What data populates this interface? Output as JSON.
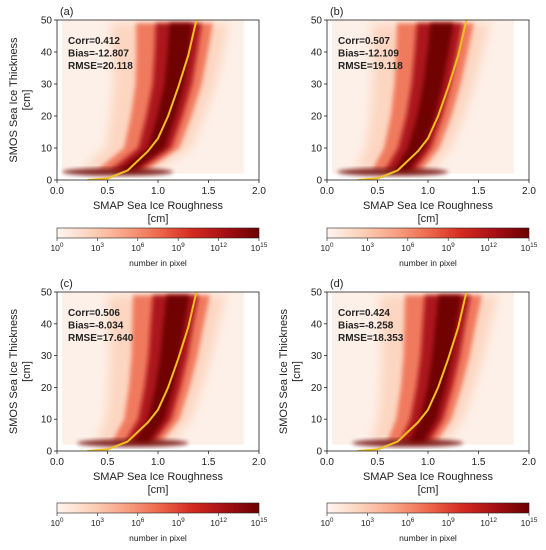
{
  "chart_data": [
    {
      "type": "heatmap",
      "panel_label": "(a)",
      "xlabel": "SMAP Sea Ice Roughness",
      "xlabel_unit": "[cm]",
      "ylabel": "SMOS Sea Ice Thickness",
      "ylabel_unit": "[cm]",
      "xlim": [
        0,
        2.0
      ],
      "ylim": [
        0,
        50
      ],
      "x_ticks": [
        "0.0",
        "0.5",
        "1.0",
        "1.5",
        "2.0"
      ],
      "y_ticks": [
        "0",
        "10",
        "20",
        "30",
        "40",
        "50"
      ],
      "stats": [
        "Corr=0.412",
        "Bias=-12.807",
        "RMSE=20.118"
      ],
      "colorbar_label": "number in pixel",
      "colorbar_ticks": [
        "10",
        "10",
        "10",
        "10",
        "10",
        "10"
      ],
      "colorbar_exponents": [
        "0",
        "3",
        "6",
        "9",
        "12",
        "15"
      ],
      "density_core_x": [
        0.7,
        1.0,
        1.1,
        1.18,
        1.22,
        1.25
      ],
      "fit_curve": [
        [
          0.3,
          0
        ],
        [
          0.5,
          0.5
        ],
        [
          0.7,
          3
        ],
        [
          0.9,
          9
        ],
        [
          1.0,
          13
        ],
        [
          1.1,
          20
        ],
        [
          1.2,
          29
        ],
        [
          1.3,
          39
        ],
        [
          1.38,
          50
        ]
      ]
    },
    {
      "type": "heatmap",
      "panel_label": "(b)",
      "xlabel": "SMAP Sea Ice Roughness",
      "xlabel_unit": "[cm]",
      "ylabel": "",
      "ylabel_unit": "",
      "xlim": [
        0,
        2.0
      ],
      "ylim": [
        0,
        50
      ],
      "x_ticks": [
        "0.0",
        "0.5",
        "1.0",
        "1.5",
        "2.0"
      ],
      "y_ticks": [
        "0",
        "10",
        "20",
        "30",
        "40",
        "50"
      ],
      "stats": [
        "Corr=0.507",
        "Bias=-12.109",
        "RMSE=19.118"
      ],
      "colorbar_label": "number in pixel",
      "colorbar_ticks": [
        "10",
        "10",
        "10",
        "10",
        "10",
        "10"
      ],
      "colorbar_exponents": [
        "0",
        "3",
        "6",
        "9",
        "12",
        "15"
      ],
      "density_core_x": [
        0.75,
        0.9,
        1.0,
        1.07,
        1.12,
        1.16
      ],
      "fit_curve": [
        [
          0.3,
          0
        ],
        [
          0.5,
          0.5
        ],
        [
          0.7,
          3
        ],
        [
          0.9,
          9
        ],
        [
          1.0,
          13
        ],
        [
          1.1,
          20
        ],
        [
          1.2,
          29
        ],
        [
          1.3,
          39
        ],
        [
          1.38,
          50
        ]
      ]
    },
    {
      "type": "heatmap",
      "panel_label": "(c)",
      "xlabel": "SMAP Sea Ice Roughness",
      "xlabel_unit": "[cm]",
      "ylabel": "SMOS Sea Ice Thickness",
      "ylabel_unit": "[cm]",
      "xlim": [
        0,
        2.0
      ],
      "ylim": [
        0,
        50
      ],
      "x_ticks": [
        "0.0",
        "0.5",
        "1.0",
        "1.5",
        "2.0"
      ],
      "y_ticks": [
        "0",
        "10",
        "20",
        "30",
        "40",
        "50"
      ],
      "stats": [
        "Corr=0.506",
        "Bias=-8.034",
        "RMSE=17.640"
      ],
      "colorbar_label": "number in pixel",
      "colorbar_ticks": [
        "10",
        "10",
        "10",
        "10",
        "10",
        "10"
      ],
      "colorbar_exponents": [
        "0",
        "3",
        "6",
        "9",
        "12",
        "15"
      ],
      "density_core_x": [
        0.85,
        1.0,
        1.08,
        1.14,
        1.18,
        1.22
      ],
      "fit_curve": [
        [
          0.3,
          0
        ],
        [
          0.5,
          0.5
        ],
        [
          0.7,
          3
        ],
        [
          0.9,
          9
        ],
        [
          1.0,
          13
        ],
        [
          1.1,
          20
        ],
        [
          1.2,
          29
        ],
        [
          1.3,
          39
        ],
        [
          1.38,
          50
        ]
      ]
    },
    {
      "type": "heatmap",
      "panel_label": "(d)",
      "xlabel": "SMAP Sea Ice Roughness",
      "xlabel_unit": "[cm]",
      "ylabel": "SMOS Sea Ice Thickness",
      "ylabel_unit": "[cm]",
      "xlim": [
        0,
        2.0
      ],
      "ylim": [
        0,
        50
      ],
      "x_ticks": [
        "0.0",
        "0.5",
        "1.0",
        "1.5",
        "2.0"
      ],
      "y_ticks": [
        "0",
        "10",
        "20",
        "30",
        "40",
        "50"
      ],
      "stats": [
        "Corr=0.424",
        "Bias=-8.258",
        "RMSE=18.353"
      ],
      "colorbar_label": "number in pixel",
      "colorbar_ticks": [
        "10",
        "10",
        "10",
        "10",
        "10",
        "10"
      ],
      "colorbar_exponents": [
        "0",
        "3",
        "6",
        "9",
        "12",
        "15"
      ],
      "density_core_x": [
        0.9,
        1.02,
        1.1,
        1.16,
        1.2,
        1.24
      ],
      "fit_curve": [
        [
          0.3,
          0
        ],
        [
          0.5,
          0.5
        ],
        [
          0.7,
          3
        ],
        [
          0.9,
          9
        ],
        [
          1.0,
          13
        ],
        [
          1.1,
          20
        ],
        [
          1.2,
          29
        ],
        [
          1.3,
          39
        ],
        [
          1.38,
          50
        ]
      ]
    }
  ],
  "colors": {
    "fit_line": "#f2c11f",
    "density_low": "#fbe4d6",
    "density_mid": "#e45a3f",
    "density_high": "#6b0000",
    "colormap": [
      "#fff5f0",
      "#fcd2bb",
      "#f8a385",
      "#ee6a4d",
      "#d42a20",
      "#a50f15",
      "#6b0000"
    ]
  }
}
